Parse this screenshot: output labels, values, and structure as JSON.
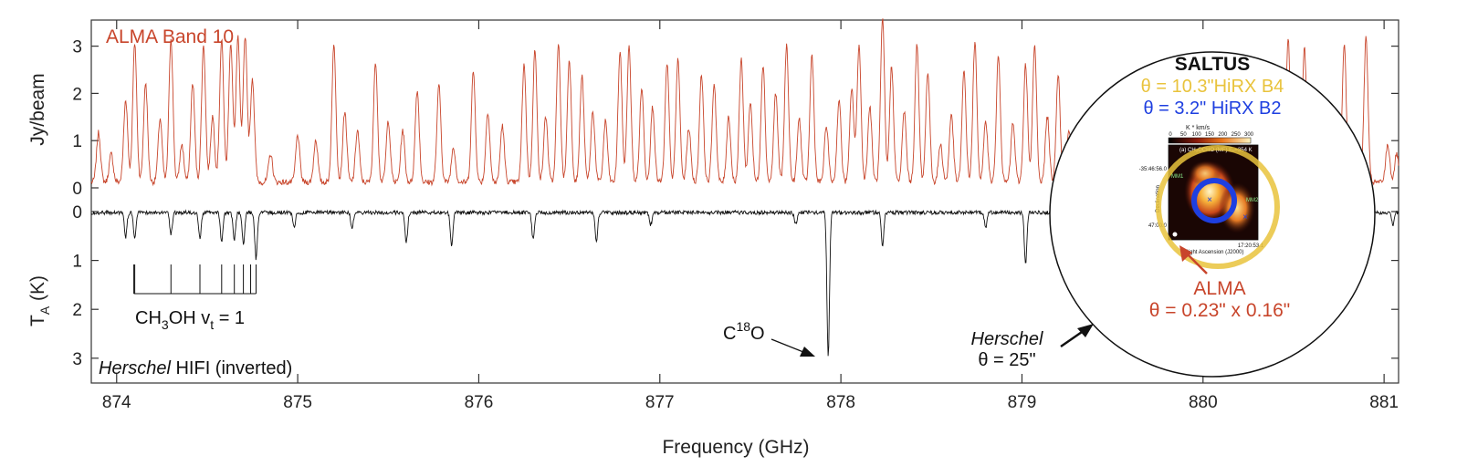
{
  "chart_data": {
    "type": "line",
    "xlabel": "Frequency (GHz)",
    "x_ticks": [
      874,
      875,
      876,
      877,
      878,
      879,
      880,
      881
    ],
    "xlim": [
      873.86,
      881.08
    ],
    "upper_axis": {
      "label": "Jy/beam",
      "ticks": [
        0,
        1,
        2,
        3
      ],
      "ylim": [
        -0.2,
        3.5
      ]
    },
    "lower_axis": {
      "label_main": "T",
      "label_sub": "A",
      "label_unit": " (K)",
      "ticks": [
        0,
        1,
        2,
        3
      ],
      "ylim": [
        -0.2,
        3.3
      ],
      "inverted": true
    },
    "series": [
      {
        "name": "ALMA Band 10",
        "color": "#c8452b",
        "axis": "upper",
        "peaks": [
          [
            873.9,
            1.05
          ],
          [
            873.97,
            0.6
          ],
          [
            874.05,
            1.75
          ],
          [
            874.1,
            2.95
          ],
          [
            874.16,
            2.1
          ],
          [
            874.24,
            1.35
          ],
          [
            874.3,
            3.05
          ],
          [
            874.36,
            0.8
          ],
          [
            874.42,
            2.1
          ],
          [
            874.48,
            2.9
          ],
          [
            874.53,
            1.4
          ],
          [
            874.58,
            3.0
          ],
          [
            874.63,
            2.95
          ],
          [
            874.67,
            3.05
          ],
          [
            874.71,
            3.1
          ],
          [
            874.75,
            2.2
          ],
          [
            874.85,
            0.6
          ],
          [
            875.0,
            1.0
          ],
          [
            875.1,
            0.9
          ],
          [
            875.2,
            2.9
          ],
          [
            875.26,
            1.5
          ],
          [
            875.33,
            1.1
          ],
          [
            875.43,
            2.55
          ],
          [
            875.5,
            1.3
          ],
          [
            875.58,
            1.1
          ],
          [
            875.66,
            1.95
          ],
          [
            875.78,
            2.05
          ],
          [
            875.86,
            0.75
          ],
          [
            875.97,
            2.35
          ],
          [
            876.05,
            1.5
          ],
          [
            876.13,
            1.2
          ],
          [
            876.25,
            2.5
          ],
          [
            876.31,
            2.8
          ],
          [
            876.37,
            1.4
          ],
          [
            876.44,
            2.9
          ],
          [
            876.5,
            2.6
          ],
          [
            876.57,
            2.25
          ],
          [
            876.63,
            1.5
          ],
          [
            876.7,
            1.3
          ],
          [
            876.78,
            2.75
          ],
          [
            876.83,
            2.85
          ],
          [
            876.9,
            2.0
          ],
          [
            876.96,
            1.6
          ],
          [
            877.04,
            2.5
          ],
          [
            877.1,
            2.6
          ],
          [
            877.16,
            1.15
          ],
          [
            877.23,
            2.3
          ],
          [
            877.3,
            2.1
          ],
          [
            877.38,
            1.4
          ],
          [
            877.45,
            2.6
          ],
          [
            877.5,
            1.7
          ],
          [
            877.57,
            2.5
          ],
          [
            877.64,
            1.9
          ],
          [
            877.7,
            2.9
          ],
          [
            877.77,
            1.35
          ],
          [
            877.84,
            2.7
          ],
          [
            877.92,
            1.2
          ],
          [
            877.99,
            1.75
          ],
          [
            878.06,
            2.0
          ],
          [
            878.1,
            2.9
          ],
          [
            878.16,
            1.6
          ],
          [
            878.23,
            3.45
          ],
          [
            878.28,
            2.45
          ],
          [
            878.35,
            1.5
          ],
          [
            878.42,
            2.9
          ],
          [
            878.48,
            2.35
          ],
          [
            878.55,
            0.8
          ],
          [
            878.61,
            1.45
          ],
          [
            878.68,
            2.35
          ],
          [
            878.74,
            2.95
          ],
          [
            878.8,
            1.3
          ],
          [
            878.87,
            2.7
          ],
          [
            878.95,
            1.25
          ],
          [
            879.02,
            2.5
          ],
          [
            879.07,
            2.9
          ],
          [
            879.14,
            1.4
          ],
          [
            879.2,
            2.3
          ],
          [
            879.26,
            1.1
          ],
          [
            879.31,
            0.6
          ],
          [
            880.47,
            3.05
          ],
          [
            880.56,
            2.85
          ],
          [
            880.78,
            2.95
          ],
          [
            880.9,
            3.05
          ],
          [
            881.02,
            0.8
          ],
          [
            881.07,
            0.6
          ]
        ]
      },
      {
        "name": "Herschel HIFI (inverted)",
        "color": "#111111",
        "axis": "lower",
        "dips": [
          [
            874.05,
            0.5
          ],
          [
            874.1,
            0.55
          ],
          [
            874.3,
            0.45
          ],
          [
            874.46,
            0.55
          ],
          [
            874.58,
            0.6
          ],
          [
            874.65,
            0.55
          ],
          [
            874.7,
            0.65
          ],
          [
            874.77,
            0.95
          ],
          [
            874.98,
            0.3
          ],
          [
            875.3,
            0.3
          ],
          [
            875.6,
            0.6
          ],
          [
            875.85,
            0.7
          ],
          [
            876.3,
            0.55
          ],
          [
            876.65,
            0.6
          ],
          [
            876.95,
            0.25
          ],
          [
            877.75,
            0.25
          ],
          [
            877.93,
            2.95
          ],
          [
            878.23,
            0.7
          ],
          [
            878.8,
            0.3
          ],
          [
            879.02,
            1.05
          ],
          [
            879.3,
            0.3
          ],
          [
            881.05,
            0.25
          ]
        ]
      }
    ],
    "annotations": {
      "alma_band_label": "ALMA Band 10",
      "herschel_italic": "Herschel",
      "herschel_rest": " HIFI (inverted)",
      "ch3oh_label": {
        "a": "CH",
        "sub1": "3",
        "b": "OH v",
        "sub2": "t",
        "c": " = 1"
      },
      "ch3oh_lines": [
        874.1,
        874.3,
        874.46,
        874.58,
        874.65,
        874.7,
        874.74,
        874.77
      ],
      "c18o_label": {
        "a": "C",
        "sup": "18",
        "b": "O"
      },
      "herschel_beam": {
        "italic": "Herschel",
        "theta": "θ = 25\""
      },
      "inset": {
        "title": "SALTUS",
        "hirx_b4": "θ = 10.3\"HiRX B4",
        "hirx_b2": "θ = 3.2\" HiRX B2",
        "alma": "ALMA",
        "alma_beam": "θ = 0.23\" x 0.16\"",
        "colors": {
          "b4": "#e9c33c",
          "b2": "#1e3fe0",
          "alma": "#c8452b"
        },
        "map": {
          "colorbar_title": "K * km/s",
          "colorbar_ticks": [
            "0",
            "50",
            "100",
            "150",
            "200",
            "250",
            "300"
          ],
          "map_title": "(a) CH₃OCHO (MF) Eᵤ=354 K",
          "dec_label": "Declination",
          "ra_label": "Right Ascension (J2000)",
          "dec_ticks": [
            "-35:46:56.0",
            "47:00.0"
          ],
          "ra_tick": "17:20:53.1",
          "mm1": "MM1",
          "mm2": "MM2"
        }
      }
    },
    "grid": false
  }
}
